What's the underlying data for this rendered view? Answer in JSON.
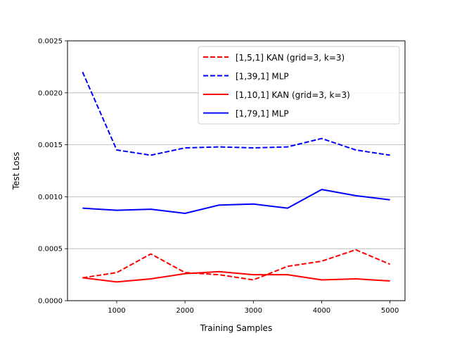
{
  "chart_data": {
    "type": "line",
    "title": "",
    "xlabel": "Training Samples",
    "ylabel": "Test Loss",
    "xlim": [
      280,
      5220
    ],
    "ylim": [
      0,
      0.0025
    ],
    "grid": "horizontal",
    "legend_position": "top-right",
    "x": [
      500,
      1000,
      1500,
      2000,
      2500,
      3000,
      3500,
      4000,
      4500,
      5000
    ],
    "xticks": [
      1000,
      2000,
      3000,
      4000,
      5000
    ],
    "xtick_labels": [
      "1000",
      "2000",
      "3000",
      "4000",
      "5000"
    ],
    "yticks": [
      0,
      0.0005,
      0.001,
      0.0015,
      0.002,
      0.0025
    ],
    "ytick_labels": [
      "0.0000",
      "0.0005",
      "0.0010",
      "0.0015",
      "0.0020",
      "0.0025"
    ],
    "series": [
      {
        "name": "[1,5,1] KAN (grid=3, k=3)",
        "color": "#ff0000",
        "style": "dashed",
        "values": [
          0.00022,
          0.00027,
          0.00045,
          0.00027,
          0.00025,
          0.0002,
          0.00033,
          0.00038,
          0.00049,
          0.00035
        ]
      },
      {
        "name": "[1,39,1] MLP",
        "color": "#0000ff",
        "style": "dashed",
        "values": [
          0.0022,
          0.00145,
          0.0014,
          0.00147,
          0.00148,
          0.00147,
          0.00148,
          0.00156,
          0.00145,
          0.0014
        ]
      },
      {
        "name": "[1,10,1] KAN (grid=3, k=3)",
        "color": "#ff0000",
        "style": "solid",
        "values": [
          0.00022,
          0.00018,
          0.00021,
          0.00026,
          0.00028,
          0.00025,
          0.00025,
          0.0002,
          0.00021,
          0.00019
        ]
      },
      {
        "name": "[1,79,1] MLP",
        "color": "#0000ff",
        "style": "solid",
        "values": [
          0.00089,
          0.00087,
          0.00088,
          0.00084,
          0.00092,
          0.00093,
          0.00089,
          0.00107,
          0.00101,
          0.00097
        ]
      }
    ]
  }
}
